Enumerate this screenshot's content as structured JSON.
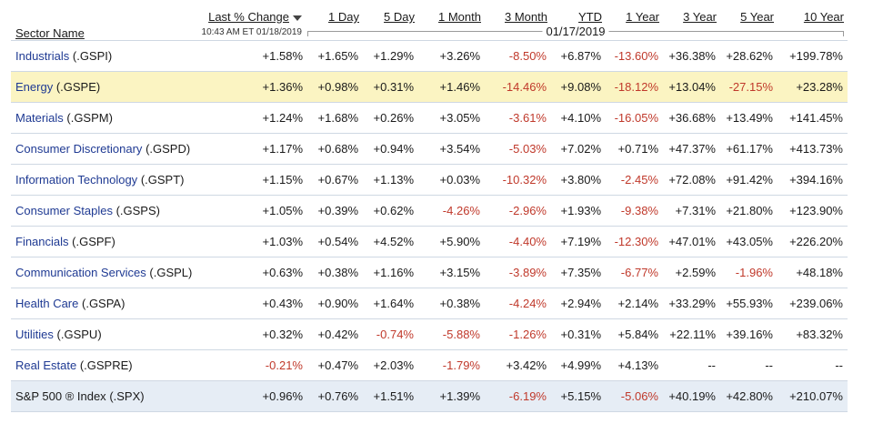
{
  "header": {
    "sector_name": "Sector Name",
    "last_change": "Last % Change",
    "timestamp": "10:43 AM ET 01/18/2019",
    "band_date": "01/17/2019",
    "periods": [
      "1 Day",
      "5 Day",
      "1 Month",
      "3 Month",
      "YTD",
      "1 Year",
      "3 Year",
      "5 Year",
      "10 Year"
    ]
  },
  "rows": [
    {
      "name": "Industrials",
      "ticker": "(.GSPI)",
      "values": [
        "+1.58%",
        "+1.65%",
        "+1.29%",
        "+3.26%",
        "-8.50%",
        "+6.87%",
        "-13.60%",
        "+36.38%",
        "+28.62%",
        "+199.78%"
      ]
    },
    {
      "name": "Energy",
      "ticker": "(.GSPE)",
      "values": [
        "+1.36%",
        "+0.98%",
        "+0.31%",
        "+1.46%",
        "-14.46%",
        "+9.08%",
        "-18.12%",
        "+13.04%",
        "-27.15%",
        "+23.28%"
      ]
    },
    {
      "name": "Materials",
      "ticker": "(.GSPM)",
      "values": [
        "+1.24%",
        "+1.68%",
        "+0.26%",
        "+3.05%",
        "-3.61%",
        "+4.10%",
        "-16.05%",
        "+36.68%",
        "+13.49%",
        "+141.45%"
      ]
    },
    {
      "name": "Consumer Discretionary",
      "ticker": "(.GSPD)",
      "values": [
        "+1.17%",
        "+0.68%",
        "+0.94%",
        "+3.54%",
        "-5.03%",
        "+7.02%",
        "+0.71%",
        "+47.37%",
        "+61.17%",
        "+413.73%"
      ]
    },
    {
      "name": "Information Technology",
      "ticker": "(.GSPT)",
      "values": [
        "+1.15%",
        "+0.67%",
        "+1.13%",
        "+0.03%",
        "-10.32%",
        "+3.80%",
        "-2.45%",
        "+72.08%",
        "+91.42%",
        "+394.16%"
      ]
    },
    {
      "name": "Consumer Staples",
      "ticker": "(.GSPS)",
      "values": [
        "+1.05%",
        "+0.39%",
        "+0.62%",
        "-4.26%",
        "-2.96%",
        "+1.93%",
        "-9.38%",
        "+7.31%",
        "+21.80%",
        "+123.90%"
      ]
    },
    {
      "name": "Financials",
      "ticker": "(.GSPF)",
      "values": [
        "+1.03%",
        "+0.54%",
        "+4.52%",
        "+5.90%",
        "-4.40%",
        "+7.19%",
        "-12.30%",
        "+47.01%",
        "+43.05%",
        "+226.20%"
      ]
    },
    {
      "name": "Communication Services",
      "ticker": "(.GSPL)",
      "values": [
        "+0.63%",
        "+0.38%",
        "+1.16%",
        "+3.15%",
        "-3.89%",
        "+7.35%",
        "-6.77%",
        "+2.59%",
        "-1.96%",
        "+48.18%"
      ]
    },
    {
      "name": "Health Care",
      "ticker": "(.GSPA)",
      "values": [
        "+0.43%",
        "+0.90%",
        "+1.64%",
        "+0.38%",
        "-4.24%",
        "+2.94%",
        "+2.14%",
        "+33.29%",
        "+55.93%",
        "+239.06%"
      ]
    },
    {
      "name": "Utilities",
      "ticker": "(.GSPU)",
      "values": [
        "+0.32%",
        "+0.42%",
        "-0.74%",
        "-5.88%",
        "-1.26%",
        "+0.31%",
        "+5.84%",
        "+22.11%",
        "+39.16%",
        "+83.32%"
      ]
    },
    {
      "name": "Real Estate",
      "ticker": "(.GSPRE)",
      "values": [
        "-0.21%",
        "+0.47%",
        "+2.03%",
        "-1.79%",
        "+3.42%",
        "+4.99%",
        "+4.13%",
        "--",
        "--",
        "--"
      ]
    },
    {
      "name": "S&P 500 ® Index",
      "ticker": "(.SPX)",
      "values": [
        "+0.96%",
        "+0.76%",
        "+1.51%",
        "+1.39%",
        "-6.19%",
        "+5.15%",
        "-5.06%",
        "+40.19%",
        "+42.80%",
        "+210.07%"
      ]
    }
  ],
  "styles": {
    "highlight_row": 1,
    "index_row": 11,
    "highlight_color": "#fbf4c2",
    "index_color": "#e6edf5",
    "negative_color": "#c0392b",
    "link_color": "#1f3a93"
  }
}
